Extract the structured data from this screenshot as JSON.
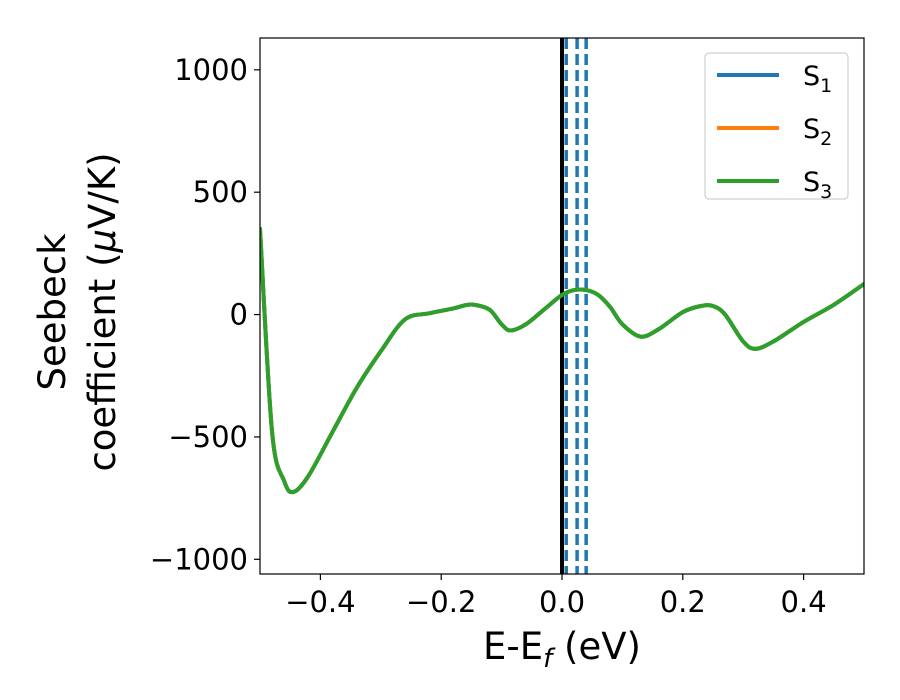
{
  "chart_data": {
    "type": "line",
    "xlabel": "E-E",
    "xlabel_sub": "f",
    "xlabel_unit": " (eV)",
    "ylabel_line1": "Seebeck",
    "ylabel_line2": "coefficient  (",
    "ylabel_mu": "μ",
    "ylabel_unit": "V/K)",
    "xlim": [
      -0.5,
      0.5
    ],
    "ylim": [
      -1060,
      1130
    ],
    "xticks": [
      -0.4,
      -0.2,
      0.0,
      0.2,
      0.4
    ],
    "xtick_labels": [
      "−0.4",
      "−0.2",
      "0.0",
      "0.2",
      "0.4"
    ],
    "yticks": [
      -1000,
      -500,
      0,
      500,
      1000
    ],
    "ytick_labels": [
      "−1000",
      "−500",
      "0",
      "500",
      "1000"
    ],
    "grid": false,
    "legend_position": "top-right",
    "series": [
      {
        "name": "S",
        "sub": "1",
        "color": "#1f77b4",
        "x": [
          -0.5,
          -0.48,
          -0.46,
          -0.445,
          -0.42,
          -0.38,
          -0.34,
          -0.3,
          -0.26,
          -0.22,
          -0.18,
          -0.16,
          -0.145,
          -0.12,
          -0.1,
          -0.085,
          -0.06,
          -0.03,
          0.0,
          0.02,
          0.04,
          0.06,
          0.08,
          0.1,
          0.13,
          0.16,
          0.2,
          0.23,
          0.25,
          0.27,
          0.3,
          0.32,
          0.35,
          0.4,
          0.45,
          0.5
        ],
        "y": [
          350,
          -480,
          -680,
          -725,
          -660,
          -480,
          -300,
          -150,
          -20,
          5,
          25,
          38,
          40,
          20,
          -40,
          -65,
          -40,
          20,
          80,
          100,
          100,
          80,
          30,
          -40,
          -90,
          -60,
          10,
          35,
          35,
          0,
          -110,
          -140,
          -110,
          -30,
          40,
          125
        ]
      },
      {
        "name": "S",
        "sub": "2",
        "color": "#ff7f0e",
        "x": [
          -0.5,
          -0.48,
          -0.46,
          -0.445,
          -0.42,
          -0.38,
          -0.34,
          -0.3,
          -0.26,
          -0.22,
          -0.18,
          -0.16,
          -0.145,
          -0.12,
          -0.1,
          -0.085,
          -0.06,
          -0.03,
          0.0,
          0.02,
          0.04,
          0.06,
          0.08,
          0.1,
          0.13,
          0.16,
          0.2,
          0.23,
          0.25,
          0.27,
          0.3,
          0.32,
          0.35,
          0.4,
          0.45,
          0.5
        ],
        "y": [
          350,
          -480,
          -680,
          -725,
          -660,
          -480,
          -300,
          -150,
          -20,
          5,
          25,
          38,
          40,
          20,
          -40,
          -65,
          -40,
          20,
          80,
          100,
          100,
          80,
          30,
          -40,
          -90,
          -60,
          10,
          35,
          35,
          0,
          -110,
          -140,
          -110,
          -30,
          40,
          125
        ]
      },
      {
        "name": "S",
        "sub": "3",
        "color": "#2ca02c",
        "x": [
          -0.5,
          -0.48,
          -0.46,
          -0.445,
          -0.42,
          -0.38,
          -0.34,
          -0.3,
          -0.26,
          -0.22,
          -0.18,
          -0.16,
          -0.145,
          -0.12,
          -0.1,
          -0.085,
          -0.06,
          -0.03,
          0.0,
          0.02,
          0.04,
          0.06,
          0.08,
          0.1,
          0.13,
          0.16,
          0.2,
          0.23,
          0.25,
          0.27,
          0.3,
          0.32,
          0.35,
          0.4,
          0.45,
          0.5
        ],
        "y": [
          350,
          -480,
          -680,
          -725,
          -660,
          -480,
          -300,
          -150,
          -20,
          5,
          25,
          38,
          40,
          20,
          -40,
          -65,
          -40,
          20,
          80,
          100,
          100,
          80,
          30,
          -40,
          -90,
          -60,
          10,
          35,
          35,
          0,
          -110,
          -140,
          -110,
          -30,
          40,
          125
        ]
      }
    ],
    "vertical_lines": [
      {
        "x": 0.0,
        "color": "#000000",
        "style": "solid"
      },
      {
        "x": 0.007,
        "color": "#1f77b4",
        "style": "dashed"
      },
      {
        "x": 0.025,
        "color": "#1f77b4",
        "style": "dashed"
      },
      {
        "x": 0.04,
        "color": "#1f77b4",
        "style": "dashed"
      }
    ]
  }
}
